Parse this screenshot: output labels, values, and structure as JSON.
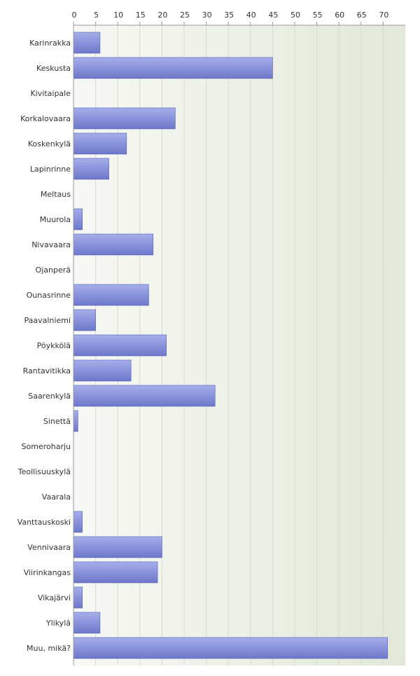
{
  "chart_data": {
    "type": "bar",
    "orientation": "horizontal",
    "title": "",
    "xlabel": "",
    "ylabel": "",
    "xlim": [
      0,
      75
    ],
    "xticks": [
      "0",
      "5",
      "10",
      "15",
      "20",
      "25",
      "30",
      "35",
      "40",
      "45",
      "50",
      "55",
      "60",
      "65",
      "70"
    ],
    "x_axis_position": "top",
    "grid": true,
    "legend": "none",
    "categories": [
      "Karinrakka",
      "Keskusta",
      "Kivitaipale",
      "Korkalovaara",
      "Koskenkylä",
      "Lapinrinne",
      "Meltaus",
      "Muurola",
      "Nivavaara",
      "Ojanperä",
      "Ounasrinne",
      "Paavalniemi",
      "Pöykkölä",
      "Rantavitikka",
      "Saarenkylä",
      "Sinettä",
      "Someroharju",
      "Teollisuuskylä",
      "Vaarala",
      "Vanttauskoski",
      "Vennivaara",
      "Viirinkangas",
      "Vikajärvi",
      "Ylikylä",
      "Muu, mikä?"
    ],
    "values": [
      6,
      45,
      0,
      23,
      12,
      8,
      0,
      2,
      18,
      0,
      17,
      5,
      21,
      13,
      32,
      1,
      0,
      0,
      0,
      2,
      20,
      19,
      2,
      6,
      71
    ],
    "colors": {
      "bar_top": "#a6aeea",
      "bar_bottom": "#6d78cc",
      "bar_edge": "#5560b8",
      "plot_bg_left": "#f7f8f4",
      "plot_bg_right": "#e2e8d9",
      "grid": "#d7dccd",
      "axis": "#999999"
    }
  }
}
